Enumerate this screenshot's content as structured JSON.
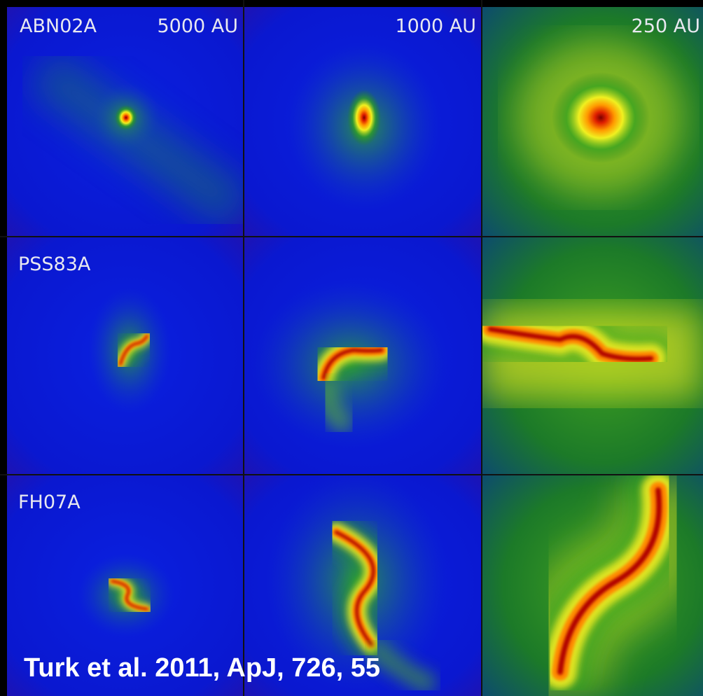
{
  "header": {
    "row_label_first": "ABN02A",
    "column_scales": [
      "5000 AU",
      "1000 AU",
      "250 AU"
    ]
  },
  "rows": [
    {
      "label": "PSS83A"
    },
    {
      "label": "FH07A"
    }
  ],
  "citation": "Turk et al. 2011, ApJ, 726, 55"
}
